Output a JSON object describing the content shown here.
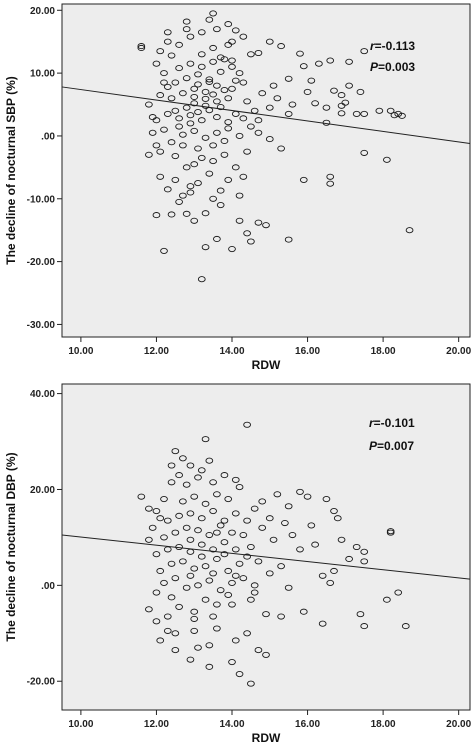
{
  "chart_data": [
    {
      "type": "scatter",
      "title": "",
      "xlabel": "RDW",
      "ylabel": "The decline of nocturnal SBP (%)",
      "xlim": [
        9.5,
        20.3
      ],
      "ylim": [
        -32,
        21
      ],
      "xticks": [
        "10.00",
        "12.00",
        "14.00",
        "16.00",
        "18.00",
        "20.00"
      ],
      "xtick_values": [
        10,
        12,
        14,
        16,
        18,
        20
      ],
      "yticks": [
        "20.00",
        "10.00",
        ".00",
        "-10.00",
        "-20.00",
        "-30.00"
      ],
      "ytick_values": [
        20,
        10,
        0,
        -10,
        -20,
        -30
      ],
      "grid": false,
      "stats": {
        "r_prefix": "r",
        "r_value": "=-0.113",
        "p_prefix": "P",
        "p_value": "=0.003"
      },
      "regression_line": {
        "x": [
          9.5,
          20.3
        ],
        "y": [
          7.8,
          -1.2
        ]
      },
      "points": [
        [
          11.6,
          14.0
        ],
        [
          11.6,
          14.3
        ],
        [
          12.8,
          18.2
        ],
        [
          13.5,
          19.5
        ],
        [
          12.0,
          11.5
        ],
        [
          12.3,
          16.5
        ],
        [
          14.0,
          15.0
        ],
        [
          14.5,
          13.0
        ],
        [
          14.7,
          13.2
        ],
        [
          15.0,
          15.0
        ],
        [
          15.3,
          14.3
        ],
        [
          15.8,
          13.1
        ],
        [
          15.9,
          11.1
        ],
        [
          16.3,
          11.5
        ],
        [
          16.6,
          12.0
        ],
        [
          17.1,
          11.8
        ],
        [
          17.5,
          13.5
        ],
        [
          14.0,
          12.0
        ],
        [
          14.2,
          10.0
        ],
        [
          15.5,
          9.1
        ],
        [
          16.1,
          8.8
        ],
        [
          16.7,
          7.2
        ],
        [
          16.9,
          6.5
        ],
        [
          17.1,
          8.0
        ],
        [
          17.4,
          7.0
        ],
        [
          17.9,
          4.0
        ],
        [
          16.2,
          5.2
        ],
        [
          16.5,
          4.5
        ],
        [
          16.9,
          4.8
        ],
        [
          17.3,
          3.5
        ],
        [
          17.5,
          3.5
        ],
        [
          18.2,
          4.0
        ],
        [
          18.4,
          3.5
        ],
        [
          18.3,
          3.3
        ],
        [
          18.5,
          3.2
        ],
        [
          16.5,
          2.1
        ],
        [
          16.9,
          3.6
        ],
        [
          17.0,
          5.3
        ],
        [
          15.5,
          3.5
        ],
        [
          15.0,
          4.5
        ],
        [
          15.2,
          6.0
        ],
        [
          16.0,
          7.0
        ],
        [
          14.7,
          0.5
        ],
        [
          15.0,
          -0.5
        ],
        [
          15.3,
          -2.0
        ],
        [
          15.9,
          -7.0
        ],
        [
          16.6,
          -6.5
        ],
        [
          16.6,
          -7.6
        ],
        [
          17.5,
          -2.7
        ],
        [
          18.1,
          -3.8
        ],
        [
          18.7,
          -15.0
        ],
        [
          14.2,
          -13.5
        ],
        [
          14.7,
          -13.8
        ],
        [
          14.9,
          -14.2
        ],
        [
          14.4,
          -15.5
        ],
        [
          14.5,
          -16.8
        ],
        [
          15.5,
          -16.5
        ],
        [
          14.0,
          -18.0
        ],
        [
          13.3,
          -17.7
        ],
        [
          12.2,
          -18.3
        ],
        [
          13.2,
          -22.8
        ],
        [
          13.6,
          -16.4
        ],
        [
          12.0,
          -12.6
        ],
        [
          12.4,
          -12.5
        ],
        [
          12.8,
          -12.4
        ],
        [
          13.0,
          -13.5
        ],
        [
          12.7,
          -9.5
        ],
        [
          12.9,
          -9.0
        ],
        [
          13.5,
          -10.0
        ],
        [
          13.7,
          -11.0
        ],
        [
          13.3,
          -12.3
        ],
        [
          14.2,
          -9.5
        ],
        [
          12.1,
          -6.5
        ],
        [
          12.5,
          -7.0
        ],
        [
          12.8,
          -5.0
        ],
        [
          13.0,
          -4.5
        ],
        [
          13.9,
          -7.0
        ],
        [
          14.1,
          -5.0
        ],
        [
          11.8,
          -3.0
        ],
        [
          12.1,
          -2.5
        ],
        [
          12.5,
          -3.2
        ],
        [
          13.2,
          -3.5
        ],
        [
          13.5,
          -4.0
        ],
        [
          14.4,
          -2.5
        ],
        [
          11.9,
          0.5
        ],
        [
          12.2,
          1.0
        ],
        [
          12.0,
          2.5
        ],
        [
          12.3,
          3.5
        ],
        [
          11.8,
          5.0
        ],
        [
          12.1,
          6.5
        ],
        [
          12.2,
          8.5
        ],
        [
          12.2,
          10.0
        ],
        [
          12.4,
          12.8
        ],
        [
          12.6,
          14.5
        ],
        [
          12.9,
          15.8
        ],
        [
          13.2,
          16.5
        ],
        [
          13.6,
          17.0
        ],
        [
          13.9,
          17.8
        ],
        [
          13.2,
          13.0
        ],
        [
          13.5,
          14.0
        ],
        [
          13.7,
          12.5
        ],
        [
          14.0,
          11.0
        ],
        [
          12.4,
          -1.0
        ],
        [
          12.7,
          -1.5
        ],
        [
          13.1,
          -2.0
        ],
        [
          13.5,
          -1.5
        ],
        [
          13.8,
          -0.8
        ],
        [
          14.2,
          0.0
        ],
        [
          12.6,
          1.5
        ],
        [
          12.9,
          2.0
        ],
        [
          13.2,
          2.5
        ],
        [
          13.6,
          3.0
        ],
        [
          13.9,
          2.2
        ],
        [
          14.3,
          2.8
        ],
        [
          12.5,
          4.0
        ],
        [
          12.8,
          4.5
        ],
        [
          13.0,
          5.2
        ],
        [
          13.3,
          4.8
        ],
        [
          13.6,
          5.5
        ],
        [
          13.9,
          6.0
        ],
        [
          12.4,
          6.0
        ],
        [
          12.7,
          6.8
        ],
        [
          13.0,
          7.5
        ],
        [
          13.3,
          7.0
        ],
        [
          13.6,
          8.0
        ],
        [
          14.0,
          7.5
        ],
        [
          12.5,
          8.5
        ],
        [
          12.8,
          9.2
        ],
        [
          13.1,
          9.8
        ],
        [
          13.4,
          9.0
        ],
        [
          13.7,
          10.2
        ],
        [
          14.3,
          8.5
        ],
        [
          12.6,
          10.8
        ],
        [
          12.9,
          11.5
        ],
        [
          13.2,
          11.0
        ],
        [
          13.5,
          11.8
        ],
        [
          13.8,
          12.2
        ],
        [
          14.4,
          5.5
        ],
        [
          12.7,
          0.2
        ],
        [
          13.0,
          0.8
        ],
        [
          13.3,
          -0.3
        ],
        [
          13.6,
          0.5
        ],
        [
          13.9,
          1.2
        ],
        [
          14.6,
          4.0
        ],
        [
          12.9,
          3.3
        ],
        [
          13.1,
          3.8
        ],
        [
          13.4,
          4.1
        ],
        [
          13.7,
          4.6
        ],
        [
          14.1,
          3.5
        ],
        [
          14.8,
          6.8
        ],
        [
          13.0,
          6.2
        ],
        [
          13.3,
          5.9
        ],
        [
          13.5,
          6.6
        ],
        [
          13.8,
          7.3
        ],
        [
          14.1,
          8.8
        ],
        [
          15.1,
          8.0
        ],
        [
          13.1,
          8.2
        ],
        [
          13.4,
          8.6
        ],
        [
          12.3,
          7.8
        ],
        [
          12.6,
          2.8
        ],
        [
          13.8,
          -3.0
        ],
        [
          14.3,
          -6.5
        ],
        [
          12.3,
          -8.5
        ],
        [
          12.6,
          -10.5
        ],
        [
          13.1,
          -7.5
        ],
        [
          13.4,
          -6.0
        ],
        [
          12.9,
          -8.0
        ],
        [
          13.7,
          -8.7
        ],
        [
          12.0,
          -1.5
        ],
        [
          11.9,
          3.0
        ],
        [
          14.5,
          1.5
        ],
        [
          14.7,
          2.5
        ],
        [
          15.6,
          5.0
        ],
        [
          13.9,
          14.5
        ],
        [
          14.3,
          15.8
        ],
        [
          12.1,
          13.5
        ],
        [
          12.3,
          15.0
        ],
        [
          12.8,
          17.0
        ],
        [
          13.4,
          18.5
        ],
        [
          14.1,
          16.8
        ]
      ]
    },
    {
      "type": "scatter",
      "title": "",
      "xlabel": "RDW",
      "ylabel": "The decline of nocturnal DBP (%)",
      "xlim": [
        9.5,
        20.3
      ],
      "ylim": [
        -26,
        42
      ],
      "xticks": [
        "10.00",
        "12.00",
        "14.00",
        "16.00",
        "18.00",
        "20.00"
      ],
      "xtick_values": [
        10,
        12,
        14,
        16,
        18,
        20
      ],
      "yticks": [
        "40.00",
        "20.00",
        ".00",
        "-20.00"
      ],
      "ytick_values": [
        40,
        20,
        0,
        -20
      ],
      "grid": false,
      "stats": {
        "r_prefix": "r",
        "r_value": "=-0.101",
        "p_prefix": "P",
        "p_value": "=0.007"
      },
      "regression_line": {
        "x": [
          9.5,
          20.3
        ],
        "y": [
          10.5,
          1.3
        ]
      },
      "points": [
        [
          14.4,
          33.5
        ],
        [
          13.3,
          30.5
        ],
        [
          12.5,
          28.0
        ],
        [
          12.7,
          26.5
        ],
        [
          12.9,
          25.0
        ],
        [
          13.2,
          24.0
        ],
        [
          11.6,
          18.5
        ],
        [
          11.8,
          16.0
        ],
        [
          12.0,
          15.5
        ],
        [
          12.2,
          18.0
        ],
        [
          12.4,
          21.5
        ],
        [
          12.6,
          23.0
        ],
        [
          15.8,
          19.5
        ],
        [
          16.0,
          18.5
        ],
        [
          16.5,
          18.0
        ],
        [
          15.5,
          16.5
        ],
        [
          16.7,
          15.5
        ],
        [
          16.8,
          14.0
        ],
        [
          18.2,
          11.0
        ],
        [
          18.2,
          11.3
        ],
        [
          17.3,
          8.0
        ],
        [
          17.5,
          7.0
        ],
        [
          16.9,
          9.5
        ],
        [
          16.2,
          8.5
        ],
        [
          15.8,
          7.5
        ],
        [
          16.7,
          3.0
        ],
        [
          17.5,
          5.0
        ],
        [
          17.1,
          5.5
        ],
        [
          16.6,
          0.5
        ],
        [
          16.4,
          2.0
        ],
        [
          18.4,
          -1.5
        ],
        [
          18.1,
          -3.0
        ],
        [
          17.4,
          -6.0
        ],
        [
          17.5,
          -8.5
        ],
        [
          16.4,
          -8.0
        ],
        [
          15.9,
          -5.5
        ],
        [
          18.6,
          -8.5
        ],
        [
          14.0,
          -16.0
        ],
        [
          13.4,
          -17.0
        ],
        [
          14.2,
          -18.5
        ],
        [
          14.5,
          -20.5
        ],
        [
          13.1,
          -13.0
        ],
        [
          13.4,
          -12.5
        ],
        [
          12.9,
          -15.5
        ],
        [
          12.5,
          -13.5
        ],
        [
          12.1,
          -11.5
        ],
        [
          12.5,
          -10.0
        ],
        [
          13.0,
          -9.5
        ],
        [
          13.6,
          -9.0
        ],
        [
          14.1,
          -11.5
        ],
        [
          14.7,
          -13.5
        ],
        [
          14.9,
          -14.5
        ],
        [
          14.4,
          -10.0
        ],
        [
          12.0,
          -7.5
        ],
        [
          12.3,
          -6.5
        ],
        [
          11.8,
          -5.0
        ],
        [
          12.6,
          -4.5
        ],
        [
          13.0,
          -5.5
        ],
        [
          13.5,
          -6.5
        ],
        [
          14.0,
          -4.0
        ],
        [
          14.5,
          -3.0
        ],
        [
          14.9,
          -6.0
        ],
        [
          15.3,
          -6.5
        ],
        [
          12.0,
          -1.5
        ],
        [
          12.2,
          0.5
        ],
        [
          12.5,
          1.5
        ],
        [
          12.8,
          -0.5
        ],
        [
          13.1,
          0.0
        ],
        [
          13.4,
          1.0
        ],
        [
          13.7,
          -1.0
        ],
        [
          14.0,
          0.5
        ],
        [
          14.3,
          1.5
        ],
        [
          14.6,
          0.0
        ],
        [
          15.0,
          2.5
        ],
        [
          12.1,
          3.0
        ],
        [
          12.4,
          4.5
        ],
        [
          12.7,
          5.0
        ],
        [
          13.0,
          3.5
        ],
        [
          13.3,
          4.0
        ],
        [
          13.6,
          5.5
        ],
        [
          13.9,
          3.0
        ],
        [
          14.2,
          4.5
        ],
        [
          14.7,
          5.0
        ],
        [
          15.3,
          4.0
        ],
        [
          12.0,
          6.5
        ],
        [
          12.3,
          7.5
        ],
        [
          12.6,
          8.0
        ],
        [
          12.9,
          7.0
        ],
        [
          13.2,
          8.5
        ],
        [
          13.5,
          7.5
        ],
        [
          13.8,
          9.0
        ],
        [
          14.1,
          7.5
        ],
        [
          14.5,
          8.0
        ],
        [
          15.1,
          9.5
        ],
        [
          12.2,
          10.0
        ],
        [
          12.5,
          11.0
        ],
        [
          12.8,
          12.0
        ],
        [
          13.1,
          11.5
        ],
        [
          13.4,
          10.5
        ],
        [
          13.7,
          12.5
        ],
        [
          14.0,
          11.0
        ],
        [
          14.3,
          10.5
        ],
        [
          14.8,
          12.0
        ],
        [
          12.3,
          13.5
        ],
        [
          12.6,
          14.5
        ],
        [
          12.9,
          15.0
        ],
        [
          13.2,
          14.0
        ],
        [
          13.5,
          15.5
        ],
        [
          13.8,
          13.5
        ],
        [
          14.1,
          15.0
        ],
        [
          14.6,
          16.0
        ],
        [
          12.7,
          17.5
        ],
        [
          13.0,
          18.5
        ],
        [
          13.3,
          17.0
        ],
        [
          13.6,
          19.0
        ],
        [
          13.9,
          18.0
        ],
        [
          14.2,
          20.5
        ],
        [
          12.8,
          21.0
        ],
        [
          13.1,
          22.5
        ],
        [
          13.5,
          21.5
        ],
        [
          13.8,
          23.0
        ],
        [
          14.1,
          22.0
        ],
        [
          12.4,
          25.0
        ],
        [
          13.4,
          26.0
        ],
        [
          12.9,
          2.0
        ],
        [
          13.2,
          6.0
        ],
        [
          13.5,
          2.5
        ],
        [
          13.8,
          6.5
        ],
        [
          14.1,
          2.0
        ],
        [
          14.4,
          6.0
        ],
        [
          11.8,
          9.5
        ],
        [
          11.9,
          12.0
        ],
        [
          12.1,
          14.0
        ],
        [
          15.4,
          13.0
        ],
        [
          15.6,
          10.5
        ],
        [
          16.1,
          12.5
        ],
        [
          15.0,
          14.0
        ],
        [
          14.8,
          17.5
        ],
        [
          15.2,
          19.0
        ],
        [
          12.4,
          -2.5
        ],
        [
          13.3,
          -3.0
        ],
        [
          13.9,
          -2.0
        ],
        [
          14.6,
          -1.5
        ],
        [
          15.5,
          -0.5
        ],
        [
          12.9,
          9.5
        ],
        [
          13.6,
          11.0
        ],
        [
          14.4,
          13.5
        ],
        [
          13.0,
          -7.0
        ],
        [
          13.6,
          -4.0
        ],
        [
          12.3,
          -9.5
        ]
      ]
    }
  ]
}
